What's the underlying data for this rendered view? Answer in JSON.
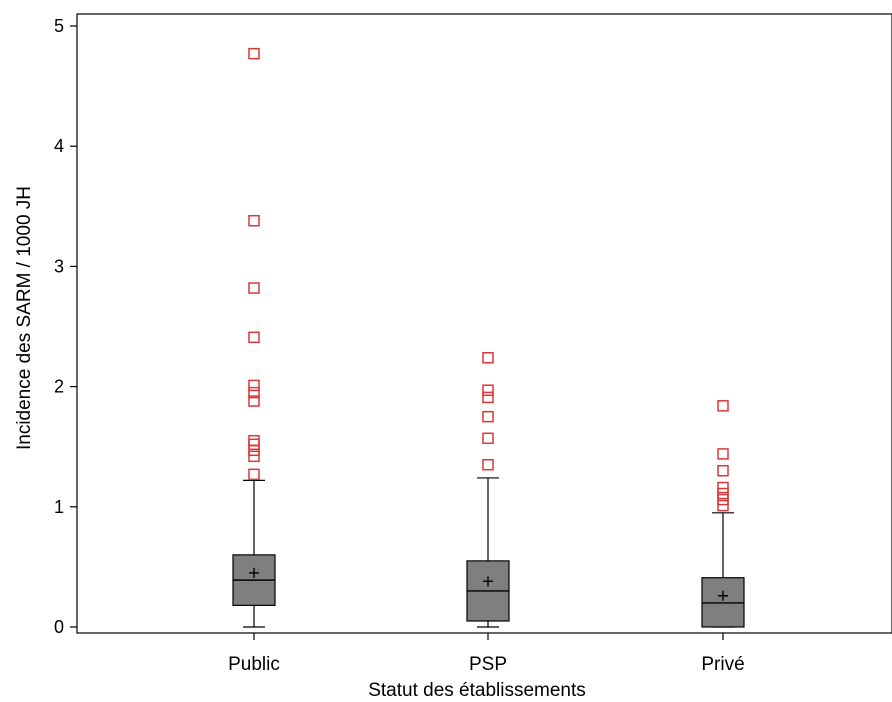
{
  "chart_data": {
    "type": "boxplot",
    "title": "",
    "xlabel": "Statut des établissements",
    "ylabel": "Incidence des SARM / 1000 JH",
    "ylim": [
      -0.05,
      5.1
    ],
    "yticks": [
      "0",
      "1",
      "2",
      "3",
      "4",
      "5"
    ],
    "categories": [
      "Public",
      "PSP",
      "Privé"
    ],
    "boxes": [
      {
        "min": 0.0,
        "q1": 0.18,
        "median": 0.39,
        "q3": 0.6,
        "max": 1.22,
        "mean": 0.45,
        "outliers": [
          1.27,
          1.42,
          1.47,
          1.52,
          1.55,
          1.88,
          1.95,
          2.01,
          2.41,
          2.82,
          3.38,
          4.77
        ]
      },
      {
        "min": 0.0,
        "q1": 0.05,
        "median": 0.3,
        "q3": 0.55,
        "max": 1.24,
        "mean": 0.38,
        "outliers": [
          1.35,
          1.57,
          1.75,
          1.91,
          1.97,
          2.24
        ]
      },
      {
        "min": 0.0,
        "q1": 0.0,
        "median": 0.2,
        "q3": 0.41,
        "max": 0.95,
        "mean": 0.26,
        "outliers": [
          1.01,
          1.06,
          1.11,
          1.16,
          1.3,
          1.44,
          1.84
        ]
      }
    ],
    "box_fill": "#7f7f7f",
    "outlier_color": "#d9383a",
    "grid": false,
    "legend": "none"
  }
}
